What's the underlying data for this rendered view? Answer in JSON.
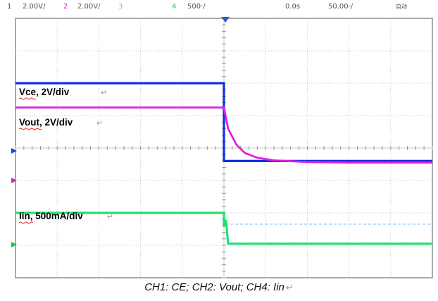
{
  "header": {
    "ch1": {
      "num": "1",
      "scale": "2.00V/",
      "color": "#2040d0"
    },
    "ch2": {
      "num": "2",
      "scale": "2.00V/",
      "color": "#c030c0"
    },
    "ch3": {
      "num": "3",
      "color": "#d0a030"
    },
    "ch4": {
      "num": "4",
      "scale": "500‧/",
      "color": "#20c050"
    },
    "trigger_pos": "0.0s",
    "timebase": "50.00‧/",
    "mode": "自动"
  },
  "labels": {
    "vce": "Vce, 2V/div",
    "vout": "Vout, 2V/div",
    "iin": "Iin, 500mA/div",
    "return_mark": "↵"
  },
  "caption": {
    "text": "CH1: CE; CH2: Vout; CH4: Iin",
    "return_mark": "↵"
  },
  "colors": {
    "ch1": "#1030e0",
    "ch2": "#e020e0",
    "ch4": "#20e070",
    "grid": "#c8c8c8",
    "ref_line": "#80b8f0"
  },
  "chart_data": {
    "type": "line",
    "title": "",
    "xlabel": "",
    "ylabel": "",
    "divisions": {
      "x": 10,
      "y": 8
    },
    "xlim": [
      -5,
      5
    ],
    "ylim": [
      -4,
      4
    ],
    "grid": true,
    "series": [
      {
        "name": "Vce",
        "x": [
          -5,
          0,
          0,
          5
        ],
        "y": [
          2.0,
          2.0,
          -0.4,
          -0.4
        ]
      },
      {
        "name": "Vout",
        "x": [
          -5,
          0,
          0.1,
          0.3,
          0.5,
          0.8,
          1.2,
          2,
          3,
          5
        ],
        "y": [
          1.25,
          1.25,
          0.6,
          0.1,
          -0.15,
          -0.3,
          -0.38,
          -0.43,
          -0.45,
          -0.45
        ]
      },
      {
        "name": "Iin",
        "x": [
          -5,
          0,
          0,
          0.05,
          0.1,
          5
        ],
        "y": [
          -2.0,
          -2.0,
          -2.4,
          -2.25,
          -2.95,
          -2.95
        ]
      }
    ]
  }
}
